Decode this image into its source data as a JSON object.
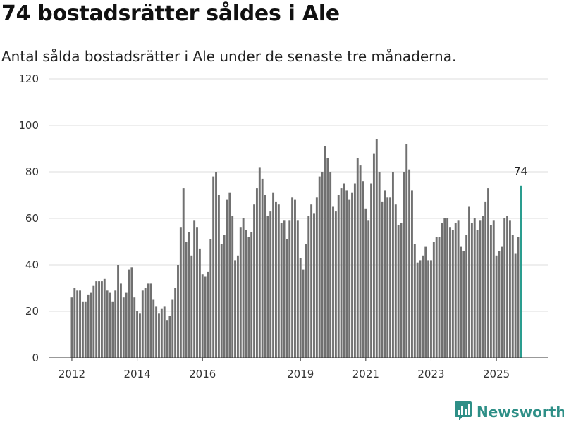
{
  "header": {
    "title": "74 bostadsrätter såldes i Ale",
    "subtitle": "Antal sålda bostadsrätter i Ale under de senaste tre månaderna."
  },
  "colors": {
    "bar": "#707070",
    "highlight": "#2a9d8f",
    "grid": "#dddddd",
    "brand": "#2e8f87"
  },
  "brand": {
    "name": "Newsworthy",
    "icon": "bar-chart-logo-icon"
  },
  "chart_data": {
    "type": "bar",
    "title": "74 bostadsrätter såldes i Ale",
    "subtitle": "Antal sålda bostadsrätter i Ale under de senaste tre månaderna.",
    "xlabel": "",
    "ylabel": "",
    "ylim": [
      0,
      120
    ],
    "yticks": [
      0,
      20,
      40,
      60,
      80,
      100,
      120
    ],
    "xticks": [
      {
        "label": "2012",
        "index": 0
      },
      {
        "label": "2014",
        "index": 24
      },
      {
        "label": "2016",
        "index": 48
      },
      {
        "label": "2019",
        "index": 84
      },
      {
        "label": "2021",
        "index": 108
      },
      {
        "label": "2023",
        "index": 132
      },
      {
        "label": "2025",
        "index": 156
      }
    ],
    "first_period": "2012-01",
    "grid": true,
    "highlight_last": true,
    "last_label": "74",
    "values": [
      26,
      30,
      29,
      29,
      24,
      24,
      27,
      28,
      31,
      33,
      33,
      33,
      34,
      29,
      28,
      24,
      29,
      40,
      32,
      26,
      28,
      38,
      39,
      26,
      20,
      19,
      29,
      30,
      32,
      32,
      25,
      22,
      19,
      21,
      22,
      16,
      18,
      25,
      30,
      40,
      56,
      73,
      50,
      54,
      44,
      59,
      56,
      47,
      36,
      35,
      37,
      51,
      78,
      80,
      70,
      49,
      53,
      68,
      71,
      61,
      42,
      44,
      56,
      60,
      55,
      52,
      54,
      66,
      73,
      82,
      77,
      70,
      61,
      63,
      71,
      67,
      66,
      58,
      59,
      51,
      59,
      69,
      68,
      59,
      43,
      38,
      49,
      61,
      66,
      62,
      69,
      78,
      80,
      91,
      86,
      80,
      65,
      63,
      70,
      73,
      75,
      72,
      68,
      71,
      75,
      86,
      83,
      76,
      64,
      59,
      75,
      88,
      94,
      80,
      67,
      72,
      69,
      69,
      80,
      66,
      57,
      58,
      80,
      92,
      81,
      72,
      49,
      41,
      42,
      44,
      48,
      42,
      42,
      50,
      52,
      52,
      58,
      60,
      60,
      56,
      55,
      58,
      59,
      48,
      46,
      53,
      65,
      58,
      60,
      55,
      59,
      61,
      67,
      73,
      57,
      59,
      44,
      46,
      48,
      60,
      61,
      59,
      53,
      45,
      52,
      74
    ]
  }
}
